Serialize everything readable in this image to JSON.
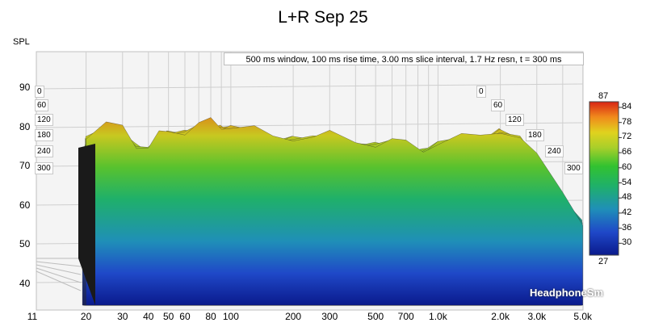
{
  "chart_data": {
    "type": "waterfall",
    "title": "L+R Sep 25",
    "ylabel": "SPL",
    "params_text": "500 ms window, 100 ms rise time, 3.00 ms slice interval, 1.7 Hz resn, t = 300 ms",
    "yticks": [
      "90",
      "80",
      "70",
      "60",
      "50",
      "40"
    ],
    "xticks": [
      "11",
      "20",
      "30",
      "40",
      "50",
      "60",
      "80",
      "100",
      "200",
      "300",
      "500",
      "700",
      "1.0k",
      "2.0k",
      "3.0k",
      "5.0k"
    ],
    "time_labels": [
      "0",
      "60",
      "120",
      "180",
      "240",
      "300"
    ],
    "colorbar": {
      "max": "87",
      "min": "27",
      "ticks": [
        "84",
        "78",
        "72",
        "66",
        "60",
        "54",
        "48",
        "42",
        "36",
        "30"
      ]
    },
    "x": [
      20,
      25,
      30,
      35,
      40,
      45,
      50,
      60,
      70,
      80,
      90,
      100,
      130,
      160,
      200,
      250,
      300,
      400,
      500,
      600,
      700,
      850,
      1000,
      1300,
      1600,
      2000,
      2500,
      3000,
      4000,
      5000
    ],
    "y_front": [
      77,
      80,
      81,
      76,
      74,
      78,
      80,
      79,
      80,
      82,
      81,
      80,
      79,
      78,
      78,
      77,
      78,
      77,
      76,
      76,
      76,
      75,
      76,
      77,
      78,
      80,
      77,
      72,
      64,
      56
    ],
    "ylim": [
      35,
      95
    ],
    "xlim": [
      11,
      6000
    ],
    "x_scale": "log"
  },
  "watermark": "HeadphoneSm"
}
